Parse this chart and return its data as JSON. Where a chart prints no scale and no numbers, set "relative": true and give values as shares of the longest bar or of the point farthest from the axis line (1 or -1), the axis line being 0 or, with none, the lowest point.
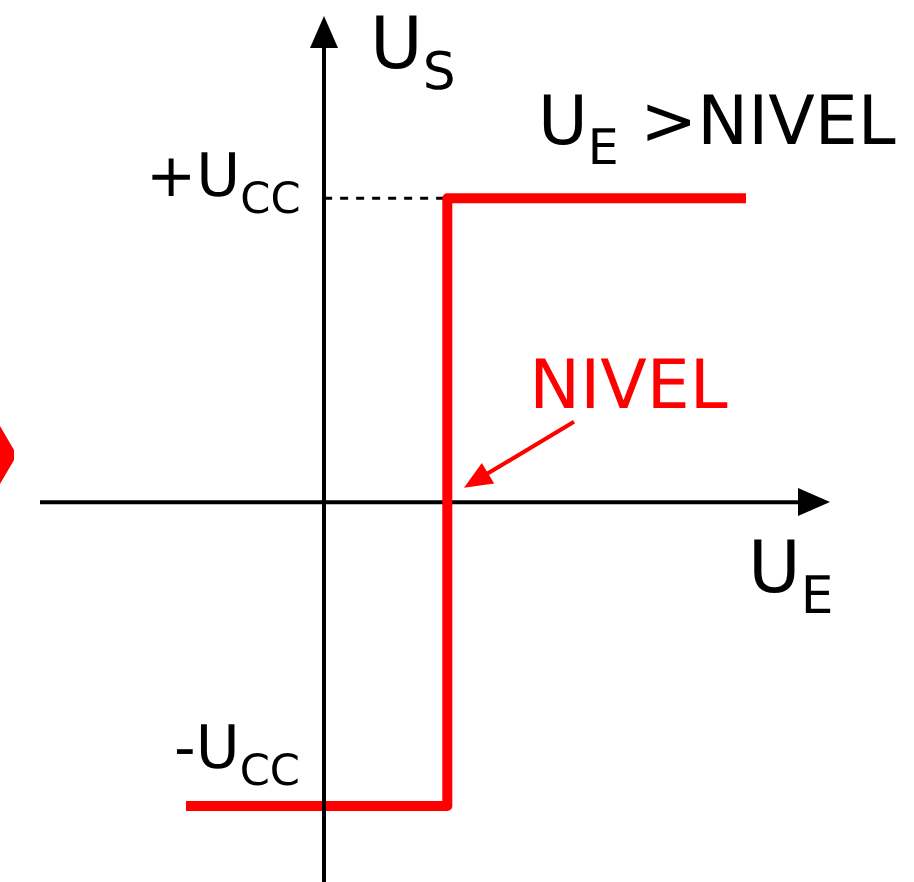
{
  "chart_data": {
    "type": "step",
    "relative": true,
    "xlabel": "U$_{E}$",
    "ylabel": "U$_{S}$",
    "categories": [
      null,
      null,
      null,
      null,
      null,
      null,
      null,
      null,
      null,
      null,
      null,
      null,
      null,
      null,
      null,
      null
    ],
    "series": [
      {
        "color": "#ff0000",
        "values": [
          -1,
          -1,
          -1,
          -1,
          -1,
          -1,
          -1,
          1,
          1,
          1,
          1,
          1,
          1,
          1,
          1,
          1
        ]
      }
    ],
    "ref_lines": [
      {
        "axis": "y",
        "value": 1,
        "label": "+U$_{CC}$",
        "color": "#000000",
        "line_style": "dashed"
      }
    ],
    "annotations": [
      "U$_{E}$ >NIVEL",
      "NIVEL",
      "-U$_{CC}$"
    ]
  }
}
